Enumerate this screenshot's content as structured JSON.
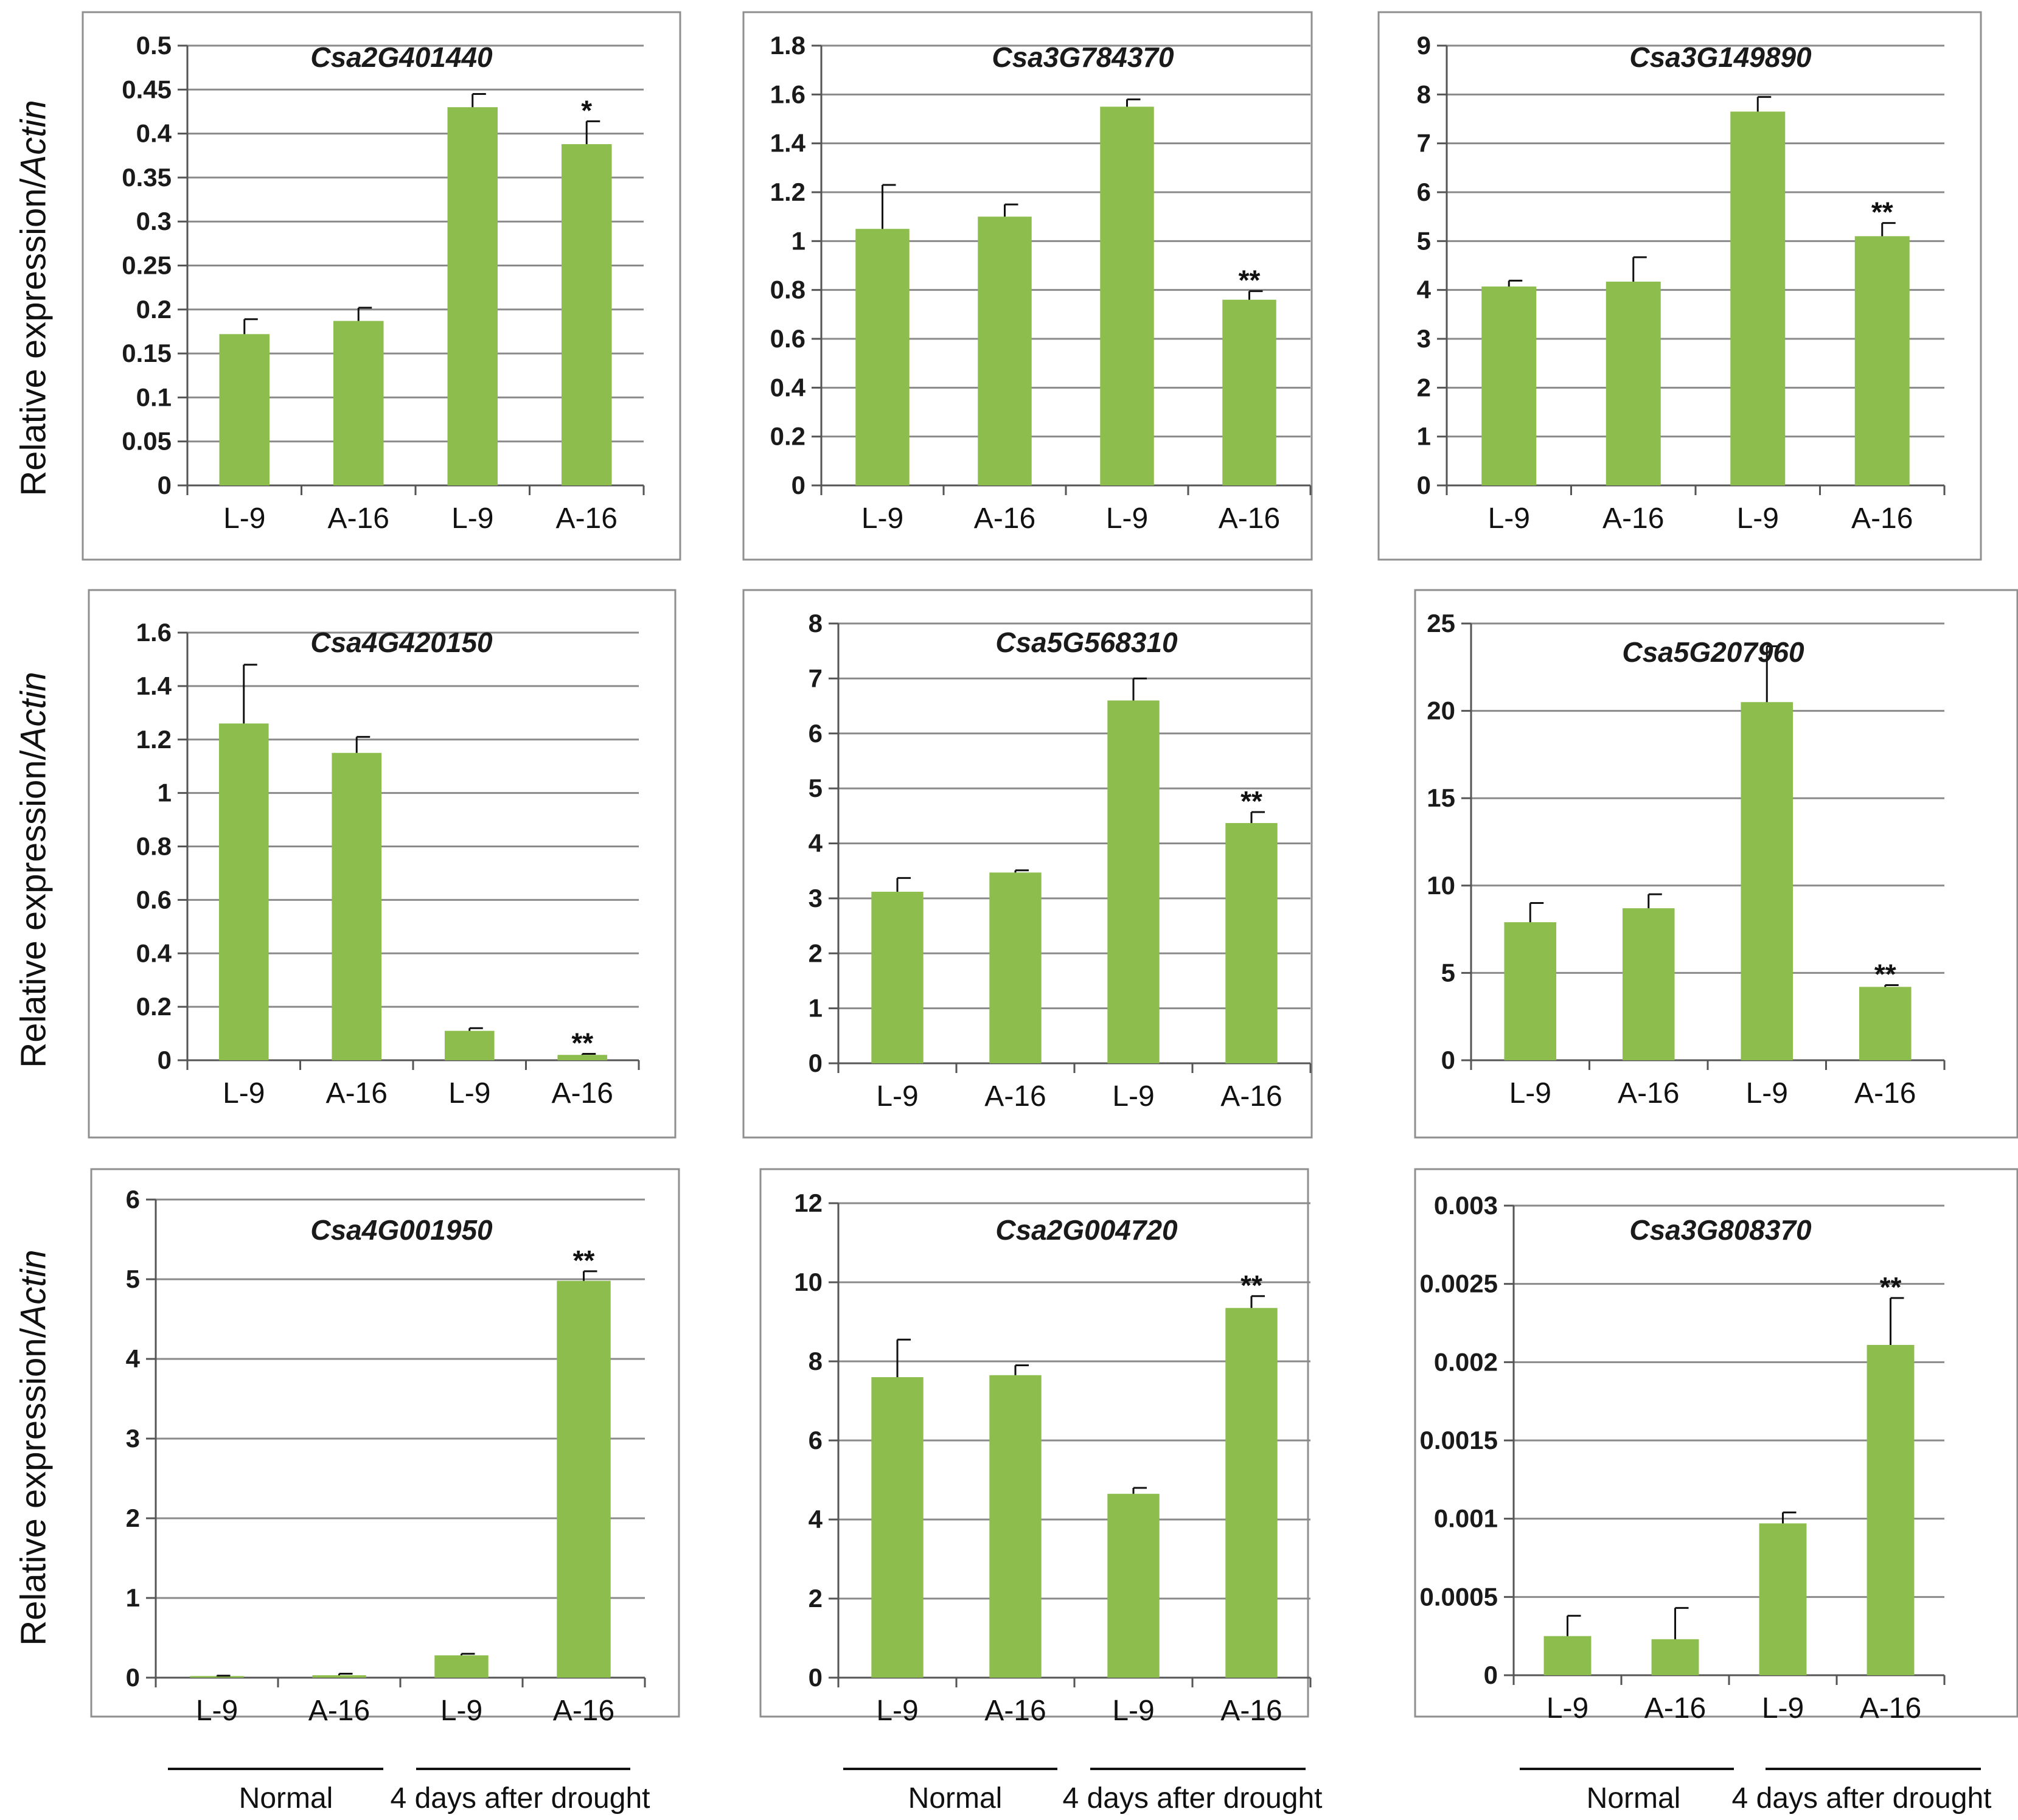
{
  "figure": {
    "ylabel_text": "Relative expression/",
    "ylabel_italic": "Actin",
    "bar_color": "#8CBD4D",
    "group_labels": [
      "Normal",
      "4 days after drought"
    ]
  },
  "chart_data": [
    {
      "type": "bar",
      "title": "Csa2G401440",
      "categories": [
        "L-9",
        "A-16",
        "L-9",
        "A-16"
      ],
      "values": [
        0.172,
        0.187,
        0.43,
        0.388
      ],
      "errors": [
        0.017,
        0.015,
        0.015,
        0.026
      ],
      "sig": [
        "",
        "",
        "",
        "*"
      ],
      "ylim": [
        0,
        0.5
      ],
      "yticks": [
        0,
        0.05,
        0.1,
        0.15,
        0.2,
        0.25,
        0.3,
        0.35,
        0.4,
        0.45,
        0.5
      ],
      "ytick_labels": [
        "0",
        "0.05",
        "0.1",
        "0.15",
        "0.2",
        "0.25",
        "0.3",
        "0.35",
        "0.4",
        "0.45",
        "0.5"
      ],
      "xlabel": "",
      "ylabel": "Relative expression/Actin"
    },
    {
      "type": "bar",
      "title": "Csa3G784370",
      "categories": [
        "L-9",
        "A-16",
        "L-9",
        "A-16"
      ],
      "values": [
        1.05,
        1.1,
        1.55,
        0.76
      ],
      "errors": [
        0.18,
        0.05,
        0.03,
        0.035
      ],
      "sig": [
        "",
        "",
        "",
        "**"
      ],
      "ylim": [
        0,
        1.8
      ],
      "yticks": [
        0,
        0.2,
        0.4,
        0.6,
        0.8,
        1,
        1.2,
        1.4,
        1.6,
        1.8
      ],
      "ytick_labels": [
        "0",
        "0.2",
        "0.4",
        "0.6",
        "0.8",
        "1",
        "1.2",
        "1.4",
        "1.6",
        "1.8"
      ],
      "xlabel": "",
      "ylabel": ""
    },
    {
      "type": "bar",
      "title": "Csa3G149890",
      "categories": [
        "L-9",
        "A-16",
        "L-9",
        "A-16"
      ],
      "values": [
        4.07,
        4.17,
        7.65,
        5.1
      ],
      "errors": [
        0.12,
        0.5,
        0.3,
        0.27
      ],
      "sig": [
        "",
        "",
        "",
        "**"
      ],
      "ylim": [
        0,
        9
      ],
      "yticks": [
        0,
        1,
        2,
        3,
        4,
        5,
        6,
        7,
        8,
        9
      ],
      "ytick_labels": [
        "0",
        "1",
        "2",
        "3",
        "4",
        "5",
        "6",
        "7",
        "8",
        "9"
      ],
      "xlabel": "",
      "ylabel": ""
    },
    {
      "type": "bar",
      "title": "Csa4G420150",
      "categories": [
        "L-9",
        "A-16",
        "L-9",
        "A-16"
      ],
      "values": [
        1.26,
        1.15,
        0.11,
        0.02
      ],
      "errors": [
        0.22,
        0.06,
        0.01,
        0.004
      ],
      "sig": [
        "",
        "",
        "",
        "**"
      ],
      "ylim": [
        0,
        1.6
      ],
      "yticks": [
        0,
        0.2,
        0.4,
        0.6,
        0.8,
        1,
        1.2,
        1.4,
        1.6
      ],
      "ytick_labels": [
        "0",
        "0.2",
        "0.4",
        "0.6",
        "0.8",
        "1",
        "1.2",
        "1.4",
        "1.6"
      ],
      "xlabel": "",
      "ylabel": "Relative expression/Actin"
    },
    {
      "type": "bar",
      "title": "Csa5G568310",
      "categories": [
        "L-9",
        "A-16",
        "L-9",
        "A-16"
      ],
      "values": [
        3.12,
        3.47,
        6.6,
        4.37
      ],
      "errors": [
        0.25,
        0.04,
        0.4,
        0.2
      ],
      "sig": [
        "",
        "",
        "",
        "**"
      ],
      "ylim": [
        0,
        8
      ],
      "yticks": [
        0,
        1,
        2,
        3,
        4,
        5,
        6,
        7,
        8
      ],
      "ytick_labels": [
        "0",
        "1",
        "2",
        "3",
        "4",
        "5",
        "6",
        "7",
        "8"
      ],
      "xlabel": "",
      "ylabel": ""
    },
    {
      "type": "bar",
      "title": "Csa5G207960",
      "categories": [
        "L-9",
        "A-16",
        "L-9",
        "A-16"
      ],
      "values": [
        7.9,
        8.7,
        20.5,
        4.2
      ],
      "errors": [
        1.1,
        0.8,
        3.2,
        0.1
      ],
      "sig": [
        "",
        "",
        "",
        "**"
      ],
      "ylim": [
        0,
        25
      ],
      "yticks": [
        0,
        5,
        10,
        15,
        20,
        25
      ],
      "ytick_labels": [
        "0",
        "5",
        "10",
        "15",
        "20",
        "25"
      ],
      "xlabel": "",
      "ylabel": ""
    },
    {
      "type": "bar",
      "title": "Csa4G001950",
      "categories": [
        "L-9",
        "A-16",
        "L-9",
        "A-16"
      ],
      "values": [
        0.02,
        0.03,
        0.28,
        4.98
      ],
      "errors": [
        0.005,
        0.02,
        0.02,
        0.12
      ],
      "sig": [
        "",
        "",
        "",
        "**"
      ],
      "ylim": [
        0,
        6
      ],
      "yticks": [
        0,
        1,
        2,
        3,
        4,
        5,
        6
      ],
      "ytick_labels": [
        "0",
        "1",
        "2",
        "3",
        "4",
        "5",
        "6"
      ],
      "xlabel": "",
      "ylabel": "Relative expression/Actin"
    },
    {
      "type": "bar",
      "title": "Csa2G004720",
      "categories": [
        "L-9",
        "A-16",
        "L-9",
        "A-16"
      ],
      "values": [
        7.6,
        7.65,
        4.65,
        9.35
      ],
      "errors": [
        0.95,
        0.25,
        0.15,
        0.3
      ],
      "sig": [
        "",
        "",
        "",
        "**"
      ],
      "ylim": [
        0,
        12
      ],
      "yticks": [
        0,
        2,
        4,
        6,
        8,
        10,
        12
      ],
      "ytick_labels": [
        "0",
        "2",
        "4",
        "6",
        "8",
        "10",
        "12"
      ],
      "xlabel": "",
      "ylabel": ""
    },
    {
      "type": "bar",
      "title": "Csa3G808370",
      "categories": [
        "L-9",
        "A-16",
        "L-9",
        "A-16"
      ],
      "values": [
        0.00025,
        0.00023,
        0.00097,
        0.00211
      ],
      "errors": [
        0.00013,
        0.0002,
        7e-05,
        0.0003
      ],
      "sig": [
        "",
        "",
        "",
        "**"
      ],
      "ylim": [
        0,
        0.003
      ],
      "yticks": [
        0,
        0.0005,
        0.001,
        0.0015,
        0.002,
        0.0025,
        0.003
      ],
      "ytick_labels": [
        "0",
        "0.0005",
        "0.001",
        "0.0015",
        "0.002",
        "0.0025",
        "0.003"
      ],
      "xlabel": "",
      "ylabel": ""
    }
  ]
}
